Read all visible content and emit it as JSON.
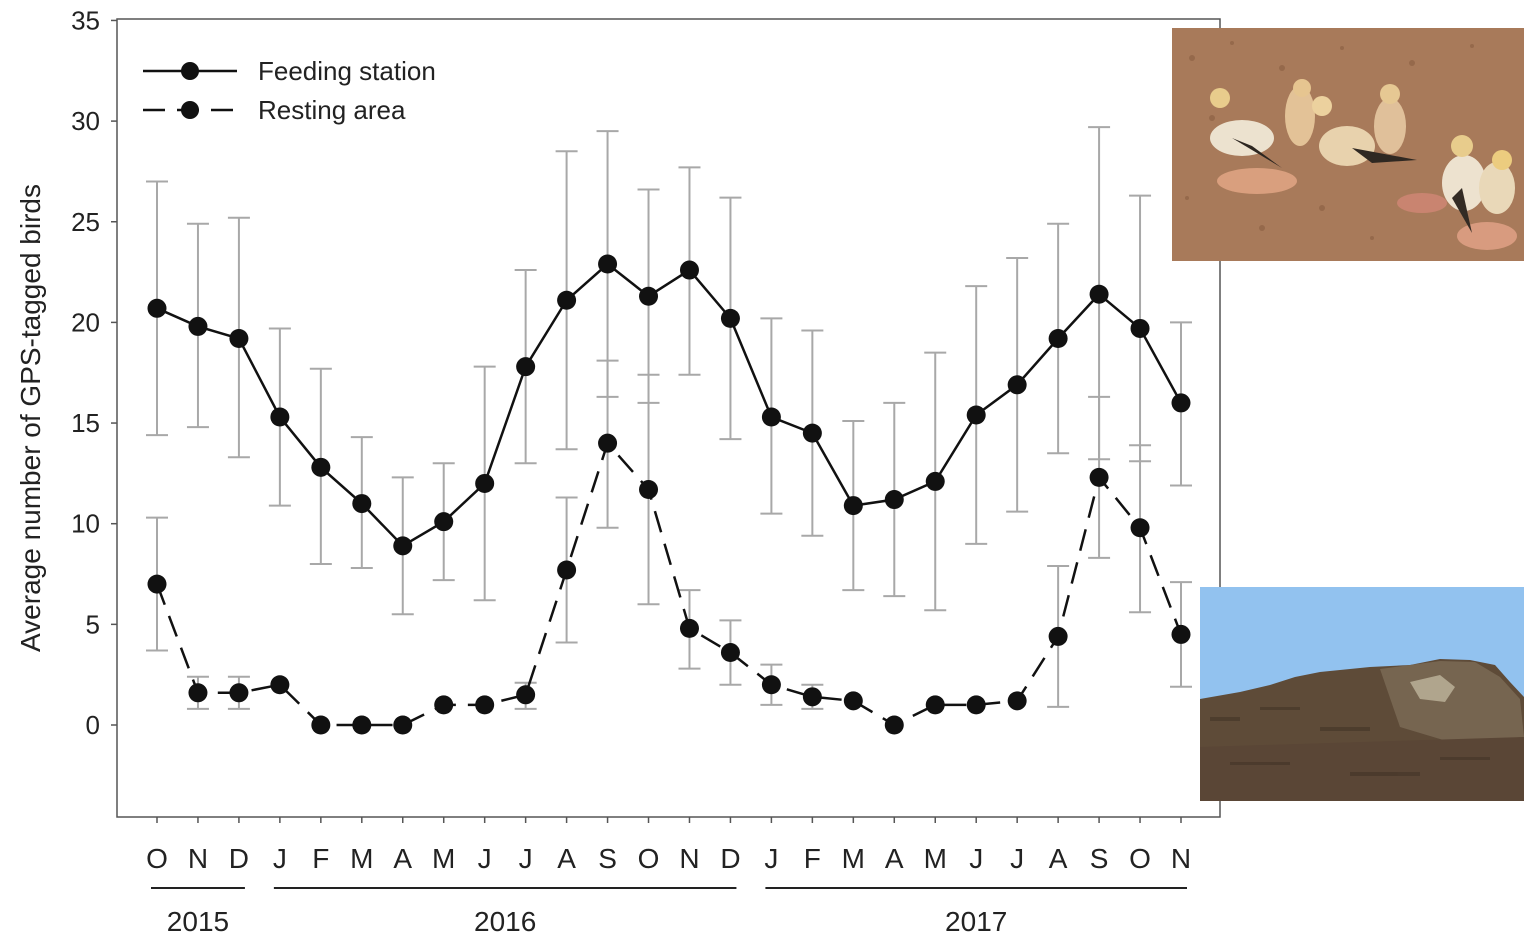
{
  "chart_data": {
    "type": "line",
    "ylabel": "Average number of GPS-tagged birds",
    "xlabel": "",
    "ylim": [
      -4.5,
      35
    ],
    "yticks": [
      0,
      5,
      10,
      15,
      20,
      25,
      30,
      35
    ],
    "categories": [
      "O",
      "N",
      "D",
      "J",
      "F",
      "M",
      "A",
      "M",
      "J",
      "J",
      "A",
      "S",
      "O",
      "N",
      "D",
      "J",
      "F",
      "M",
      "A",
      "M",
      "J",
      "J",
      "A",
      "S",
      "O",
      "N"
    ],
    "year_groups": [
      {
        "label": "2015",
        "start": 0,
        "end": 2
      },
      {
        "label": "2016",
        "start": 3,
        "end": 14
      },
      {
        "label": "2017",
        "start": 15,
        "end": 25
      }
    ],
    "legend_position": "top-left",
    "grid": false,
    "series": [
      {
        "name": "Feeding station",
        "line_style": "solid",
        "values": [
          20.7,
          19.8,
          19.2,
          15.3,
          12.8,
          11.0,
          8.9,
          10.1,
          12.0,
          17.8,
          21.1,
          22.9,
          21.3,
          22.6,
          20.2,
          15.3,
          14.5,
          10.9,
          11.2,
          12.1,
          15.4,
          16.9,
          19.2,
          21.4,
          19.7,
          16.0
        ],
        "error_high": [
          27.0,
          24.9,
          25.2,
          19.7,
          17.7,
          14.3,
          12.3,
          13.0,
          17.8,
          22.6,
          28.5,
          29.5,
          26.6,
          27.7,
          26.2,
          20.2,
          19.6,
          15.1,
          16.0,
          18.5,
          21.8,
          23.2,
          24.9,
          29.7,
          26.3,
          20.0
        ],
        "error_low": [
          14.4,
          14.8,
          13.3,
          10.9,
          8.0,
          7.8,
          5.5,
          7.2,
          6.2,
          13.0,
          13.7,
          16.3,
          16.0,
          17.4,
          14.2,
          10.5,
          9.4,
          6.7,
          6.4,
          5.7,
          9.0,
          10.6,
          13.5,
          13.2,
          13.1,
          11.9
        ]
      },
      {
        "name": "Resting area",
        "line_style": "dashed",
        "values": [
          7.0,
          1.6,
          1.6,
          2.0,
          0.0,
          0.0,
          0.0,
          1.0,
          1.0,
          1.5,
          7.7,
          14.0,
          11.7,
          4.8,
          3.6,
          2.0,
          1.4,
          1.2,
          0.0,
          1.0,
          1.0,
          1.2,
          4.4,
          12.3,
          9.8,
          4.5
        ],
        "error_high": [
          10.3,
          2.4,
          2.4,
          null,
          null,
          null,
          null,
          null,
          null,
          2.1,
          11.3,
          18.1,
          17.4,
          6.7,
          5.2,
          3.0,
          2.0,
          null,
          null,
          null,
          null,
          null,
          7.9,
          16.3,
          13.9,
          7.1
        ],
        "error_low": [
          3.7,
          0.8,
          0.8,
          null,
          null,
          null,
          null,
          null,
          null,
          0.8,
          4.1,
          9.8,
          6.0,
          2.8,
          2.0,
          1.0,
          0.8,
          null,
          null,
          null,
          null,
          null,
          0.9,
          8.3,
          5.6,
          1.9
        ]
      }
    ]
  },
  "photos": [
    {
      "name": "feeding-station-photo",
      "subject": "Egyptian vultures feeding on the ground"
    },
    {
      "name": "resting-area-photo",
      "subject": "rocky cliff under blue sky"
    }
  ]
}
